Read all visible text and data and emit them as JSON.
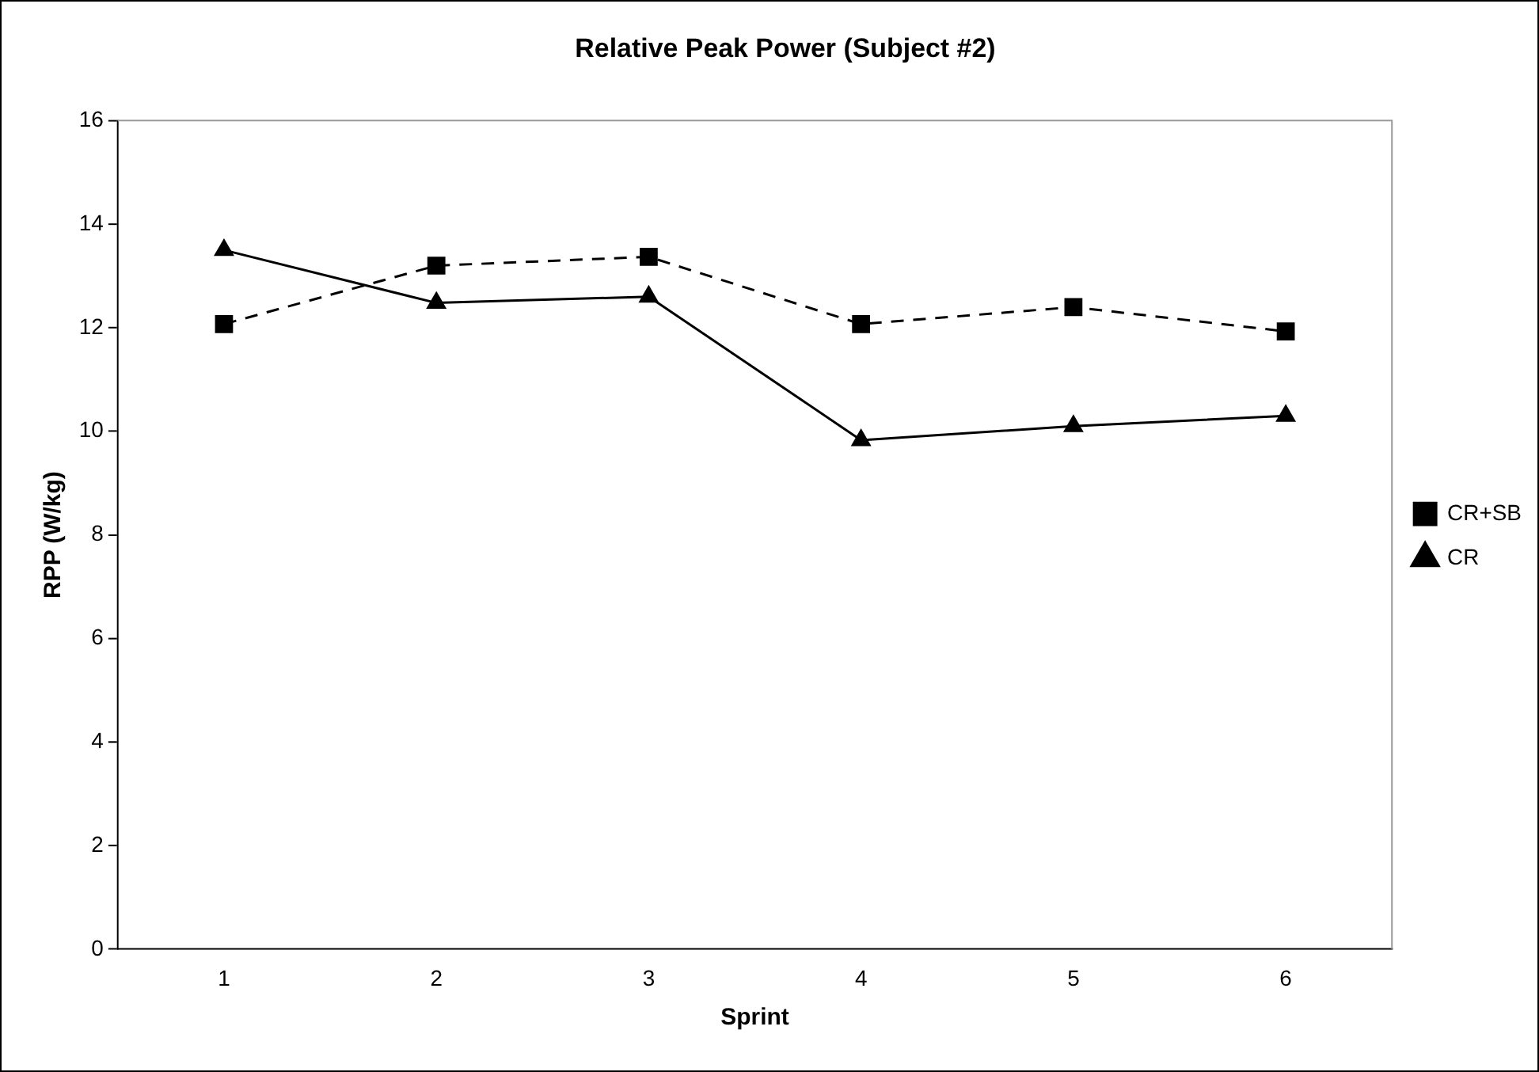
{
  "chart_data": {
    "type": "line",
    "title": "Relative Peak Power (Subject #2)",
    "xlabel": "Sprint",
    "ylabel": "RPP (W/kg)",
    "categories": [
      "1",
      "2",
      "3",
      "4",
      "5",
      "6"
    ],
    "series": [
      {
        "name": "CR+SB",
        "color": "#000000",
        "marker": "square",
        "line_style": "dashed",
        "values": [
          12.07,
          13.2,
          13.37,
          12.07,
          12.4,
          11.93
        ]
      },
      {
        "name": "CR",
        "color": "#000000",
        "marker": "triangle",
        "line_style": "solid",
        "values": [
          13.5,
          12.48,
          12.6,
          9.83,
          10.1,
          10.3
        ]
      }
    ],
    "ylim": [
      0,
      16
    ],
    "yticks": [
      0,
      2,
      4,
      6,
      8,
      10,
      12,
      14,
      16
    ],
    "grid": false,
    "legend": "right"
  }
}
